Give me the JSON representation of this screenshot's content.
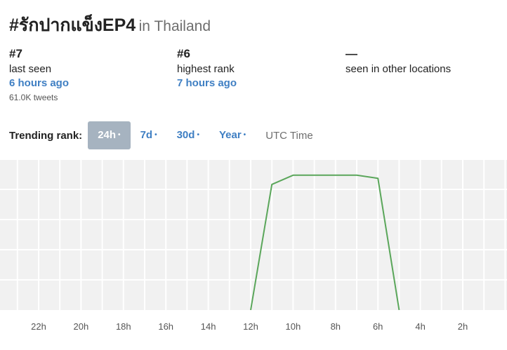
{
  "header": {
    "hashtag": "#รักปากแข็งEP4",
    "location": "in Thailand"
  },
  "stats": [
    {
      "value": "#7",
      "label": "last seen",
      "link": "6 hours ago",
      "sub": "61.0K tweets"
    },
    {
      "value": "#6",
      "label": "highest rank",
      "link": "7 hours ago",
      "sub": ""
    },
    {
      "value": "—",
      "label": "seen in other locations",
      "link": "",
      "sub": ""
    }
  ],
  "controls": {
    "label": "Trending rank:",
    "ranges": [
      {
        "label": "24h",
        "active": true
      },
      {
        "label": "7d",
        "active": false
      },
      {
        "label": "30d",
        "active": false
      },
      {
        "label": "Year",
        "active": false
      }
    ],
    "dot": "•",
    "utc_label": "UTC Time"
  },
  "chart_data": {
    "type": "line",
    "x_ticks": [
      "22h",
      "20h",
      "18h",
      "16h",
      "14h",
      "12h",
      "10h",
      "8h",
      "6h",
      "4h",
      "2h"
    ],
    "x_range_hours_ago": [
      23.5,
      0
    ],
    "y_range_rank": [
      50,
      1
    ],
    "grid": true,
    "line_color": "#5aa65a",
    "grid_bg": "#f1f1f1",
    "series": [
      {
        "points": [
          {
            "hours_ago": 12,
            "rank": 50
          },
          {
            "hours_ago": 11,
            "rank": 9
          },
          {
            "hours_ago": 10,
            "rank": 6
          },
          {
            "hours_ago": 9,
            "rank": 6
          },
          {
            "hours_ago": 8,
            "rank": 6
          },
          {
            "hours_ago": 7,
            "rank": 6
          },
          {
            "hours_ago": 6,
            "rank": 7
          },
          {
            "hours_ago": 5,
            "rank": 50
          }
        ]
      }
    ]
  }
}
